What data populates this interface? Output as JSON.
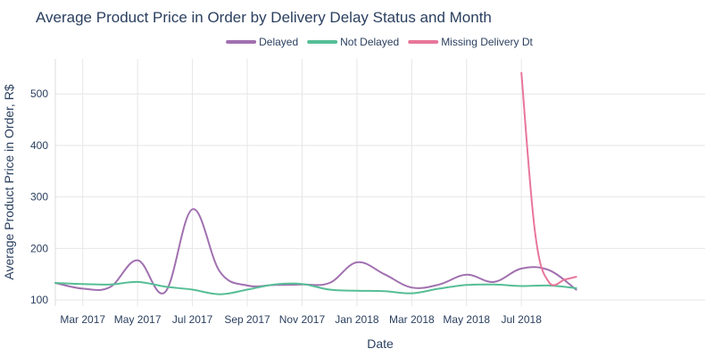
{
  "chart_data": {
    "type": "line",
    "title": "Average Product Price in Order by Delivery Delay Status and Month",
    "xlabel": "Date",
    "ylabel": "Average Product Price in Order, R$",
    "xlim": [
      0,
      23.7
    ],
    "ylim": [
      88,
      568
    ],
    "x_ticks": [
      {
        "label": "Mar 2017",
        "x": 1
      },
      {
        "label": "May 2017",
        "x": 3
      },
      {
        "label": "Jul 2017",
        "x": 5
      },
      {
        "label": "Sep 2017",
        "x": 7
      },
      {
        "label": "Nov 2017",
        "x": 9
      },
      {
        "label": "Jan 2018",
        "x": 11
      },
      {
        "label": "Mar 2018",
        "x": 13
      },
      {
        "label": "May 2018",
        "x": 15
      },
      {
        "label": "Jul 2018",
        "x": 17
      }
    ],
    "y_ticks": [
      100,
      200,
      300,
      400,
      500
    ],
    "legend_position": "top-center",
    "series": [
      {
        "name": "Delayed",
        "color": "#a170b0",
        "points": [
          [
            0,
            133
          ],
          [
            1,
            122
          ],
          [
            2,
            125
          ],
          [
            3,
            177
          ],
          [
            4,
            115
          ],
          [
            5,
            276
          ],
          [
            6,
            155
          ],
          [
            7,
            128
          ],
          [
            8,
            129
          ],
          [
            9,
            130
          ],
          [
            10,
            133
          ],
          [
            11,
            173
          ],
          [
            12,
            150
          ],
          [
            13,
            124
          ],
          [
            14,
            130
          ],
          [
            15,
            149
          ],
          [
            16,
            135
          ],
          [
            17,
            161
          ],
          [
            18,
            158
          ],
          [
            19,
            120
          ]
        ]
      },
      {
        "name": "Not Delayed",
        "color": "#56be96",
        "points": [
          [
            0,
            133
          ],
          [
            1,
            131
          ],
          [
            2,
            130
          ],
          [
            3,
            135
          ],
          [
            4,
            126
          ],
          [
            5,
            120
          ],
          [
            6,
            111
          ],
          [
            7,
            120
          ],
          [
            8,
            130
          ],
          [
            9,
            131
          ],
          [
            10,
            120
          ],
          [
            11,
            118
          ],
          [
            12,
            117
          ],
          [
            13,
            113
          ],
          [
            14,
            122
          ],
          [
            15,
            129
          ],
          [
            16,
            130
          ],
          [
            17,
            127
          ],
          [
            18,
            128
          ],
          [
            19,
            123
          ]
        ]
      },
      {
        "name": "Missing Delivery Dt",
        "color": "#e8769b",
        "points": [
          [
            17,
            541
          ],
          [
            17.5,
            230
          ],
          [
            18,
            135
          ],
          [
            18.6,
            140
          ],
          [
            19,
            145
          ]
        ]
      }
    ]
  }
}
